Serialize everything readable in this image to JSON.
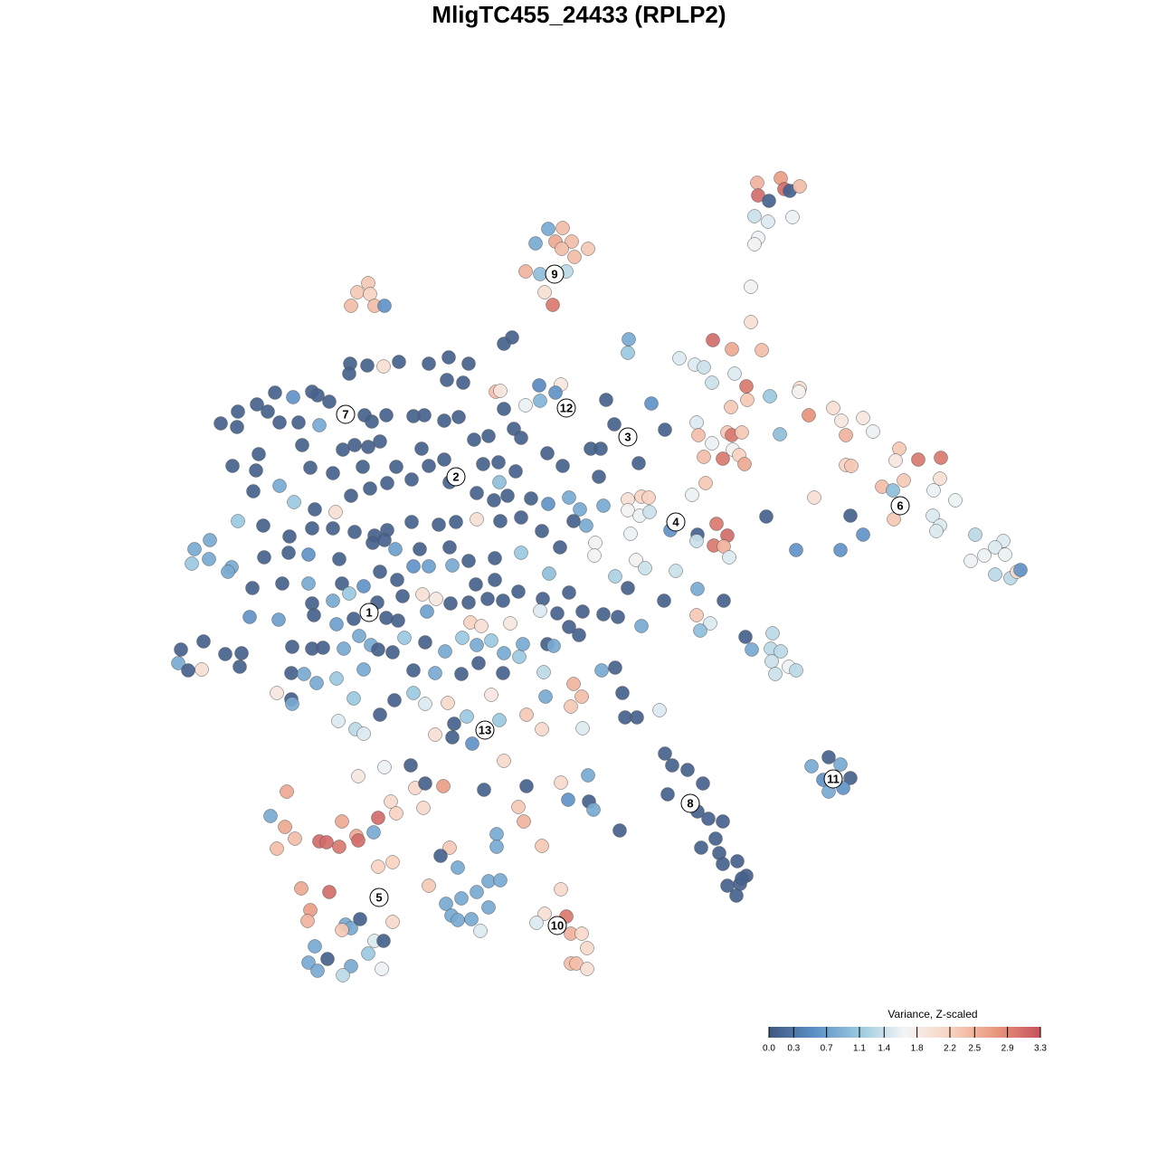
{
  "chart_data": {
    "type": "scatter",
    "title": "MligTC455_24433 (RPLP2)",
    "xlim": [
      0,
      1280
    ],
    "ylim": [
      1280,
      0
    ],
    "colors": [
      "#40587f",
      "#5b8fc6",
      "#9ac9df",
      "#f4f5f6",
      "#f8d3c1",
      "#e9997f",
      "#c6525c"
    ],
    "colorbar": {
      "title": "Variance, Z-scaled",
      "lim": [
        0,
        3.3
      ],
      "ticks": [
        {
          "value": 0,
          "label": "0.0"
        },
        0.3,
        0.7,
        1.1,
        1.4,
        1.8,
        2.2,
        2.5,
        2.9,
        3.3
      ]
    },
    "clusters": {
      "labels": [
        "1",
        "2",
        "3",
        "4",
        "5",
        "6",
        "7",
        "8",
        "9",
        "10",
        "11",
        "12",
        "13"
      ],
      "x": [
        408,
        504,
        694,
        747,
        419,
        995,
        382,
        763,
        613,
        616,
        921,
        626,
        536
      ],
      "y": [
        677,
        527,
        483,
        577,
        992,
        559,
        458,
        888,
        303,
        1023,
        861,
        451,
        807
      ]
    },
    "x": [
      837,
      863,
      867,
      838,
      873,
      884,
      850,
      834,
      849,
      876,
      838,
      834,
      830,
      830,
      606,
      622,
      592,
      614,
      632,
      621,
      650,
      635,
      581,
      597,
      626,
      602,
      611,
      407,
      395,
      409,
      388,
      414,
      425,
      566,
      557,
      387,
      406,
      424,
      441,
      474,
      496,
      518,
      386,
      512,
      494,
      548,
      553,
      596,
      620,
      614,
      597,
      581,
      670,
      720,
      284,
      304,
      324,
      345,
      351,
      364,
      296,
      263,
      244,
      262,
      309,
      330,
      353,
      403,
      411,
      427,
      457,
      469,
      491,
      507,
      557,
      568,
      576,
      524,
      540,
      420,
      407,
      379,
      392,
      334,
      286,
      257,
      283,
      343,
      368,
      401,
      438,
      466,
      474,
      491,
      534,
      551,
      570,
      605,
      622,
      653,
      664,
      706,
      662,
      679,
      735,
      552,
      561,
      546,
      587,
      606,
      629,
      641,
      667,
      280,
      309,
      325,
      348,
      388,
      409,
      428,
      455,
      497,
      527,
      371,
      263,
      291,
      320,
      345,
      368,
      392,
      414,
      428,
      455,
      485,
      504,
      527,
      553,
      576,
      599,
      634,
      648,
      215,
      232,
      212,
      231,
      256,
      292,
      319,
      341,
      375,
      412,
      425,
      437,
      464,
      497,
      518,
      547,
      576,
      619,
      658,
      657,
      703,
      252,
      279,
      312,
      341,
      378,
      402,
      420,
      439,
      457,
      474,
      500,
      526,
      547,
      573,
      607,
      629,
      680,
      713,
      747,
      694,
      734,
      771,
      800,
      345,
      368,
      386,
      417,
      445,
      467,
      482,
      498,
      518,
      539,
      556,
      600,
      597,
      616,
      644,
      667,
      683,
      276,
      308,
      347,
      372,
      391,
      427,
      440,
      472,
      520,
      532,
      564,
      629,
      640,
      709,
      770,
      785,
      774,
      200,
      225,
      197,
      208,
      223,
      249,
      267,
      265,
      323,
      345,
      357,
      380,
      397,
      410,
      418,
      434,
      447,
      470,
      492,
      511,
      527,
      543,
      557,
      574,
      578,
      605,
      612,
      824,
      854,
      831,
      852,
      863,
      853,
      872,
      880,
      857,
      322,
      336,
      350,
      372,
      402,
      457,
      481,
      510,
      529,
      556,
      601,
      665,
      680,
      306,
      322,
      323,
      391,
      436,
      457,
      470,
      495,
      543,
      603,
      634,
      643,
      688,
      374,
      393,
      402,
      420,
      481,
      502,
      516,
      552,
      582,
      599,
      631,
      644,
      691,
      704,
      729,
      500,
      522,
      695,
      694,
      751,
      768,
      778,
      788,
      809,
      842,
      787,
      812,
      825,
      851,
      884,
      883,
      826,
      770,
      808,
      772,
      787,
      804,
      809,
      820,
      810,
      817,
      778,
      799,
      823,
      780,
      765,
      862,
      894,
      921,
      930,
      954,
      935,
      965,
      994,
      1015,
      1040,
      990,
      935,
      941,
      1039,
      975,
      999,
      987,
      1032,
      900,
      1056,
      1031,
      1039,
      1035,
      988,
      940,
      954,
      929,
      880,
      847,
      1078,
      1109,
      1100,
      1088,
      1111,
      1073,
      1100,
      1117,
      1124,
      1128,
      694,
      709,
      717,
      694,
      707,
      718,
      697,
      741,
      771,
      770,
      792,
      804,
      789,
      800,
      806,
      916,
      897,
      929,
      910,
      940,
      916,
      932,
      735,
      743,
      760,
      777,
      738,
      771,
      783,
      799,
      775,
      791,
      795,
      799,
      815,
      825,
      818,
      804,
      820,
      814,
      685,
      454,
      425,
      396,
      459,
      470,
      490,
      535,
      557,
      582,
      620,
      650,
      628,
      651,
      656,
      573,
      579,
      599,
      549,
      549,
      497,
      487,
      506,
      474,
      540,
      553,
      527,
      510,
      493,
      540,
      499,
      506,
      521,
      531,
      432,
      438,
      468,
      413,
      418,
      620,
      602,
      626,
      593,
      631,
      643,
      649,
      631,
      637,
      649,
      317,
      299,
      315,
      326,
      306,
      353,
      361,
      375,
      378,
      394,
      396,
      418,
      434,
      333,
      364,
      343,
      340,
      382,
      388,
      398,
      434,
      378,
      414,
      424,
      407,
      348,
      341,
      362,
      351,
      388,
      379,
      422
    ],
    "y": [
      202,
      197,
      209,
      216,
      211,
      206,
      222,
      239,
      245,
      240,
      263,
      270,
      317,
      356,
      253,
      252,
      269,
      267,
      267,
      275,
      275,
      284,
      300,
      303,
      300,
      323,
      337,
      313,
      323,
      325,
      338,
      338,
      338,
      373,
      380,
      402,
      404,
      405,
      400,
      402,
      395,
      402,
      413,
      423,
      420,
      433,
      432,
      426,
      425,
      434,
      443,
      448,
      442,
      446,
      447,
      434,
      439,
      433,
      437,
      444,
      455,
      455,
      468,
      472,
      467,
      467,
      470,
      459,
      466,
      459,
      460,
      459,
      465,
      461,
      452,
      474,
      484,
      486,
      482,
      488,
      494,
      497,
      492,
      492,
      502,
      515,
      520,
      517,
      523,
      516,
      516,
      496,
      515,
      508,
      513,
      511,
      521,
      501,
      515,
      496,
      496,
      512,
      527,
      469,
      475,
      533,
      548,
      553,
      551,
      557,
      550,
      563,
      559,
      543,
      537,
      555,
      563,
      548,
      540,
      534,
      530,
      533,
      545,
      566,
      576,
      581,
      593,
      584,
      584,
      588,
      592,
      586,
      577,
      580,
      577,
      574,
      576,
      572,
      587,
      576,
      581,
      607,
      597,
      623,
      618,
      627,
      616,
      611,
      613,
      618,
      600,
      597,
      607,
      607,
      605,
      620,
      617,
      611,
      605,
      600,
      614,
      619,
      632,
      650,
      645,
      645,
      645,
      648,
      632,
      641,
      626,
      626,
      625,
      646,
      641,
      654,
      634,
      655,
      637,
      628,
      631,
      650,
      664,
      651,
      664,
      667,
      664,
      656,
      666,
      659,
      657,
      662,
      667,
      666,
      662,
      664,
      662,
      675,
      678,
      676,
      679,
      682,
      682,
      685,
      680,
      690,
      684,
      683,
      686,
      676,
      688,
      692,
      689,
      693,
      702,
      692,
      680,
      689,
      697,
      718,
      709,
      733,
      741,
      740,
      723,
      722,
      737,
      715,
      717,
      716,
      717,
      703,
      713,
      718,
      721,
      705,
      710,
      720,
      705,
      713,
      708,
      722,
      726,
      712,
      712,
      714,
      704,
      700,
      718,
      717,
      720,
      731,
      737,
      741,
      745,
      744,
      745,
      755,
      750,
      740,
      741,
      744,
      745,
      733,
      744,
      743,
      741,
      738,
      766,
      773,
      778,
      772,
      774,
      766,
      778,
      777,
      768,
      770,
      756,
      770,
      766,
      797,
      806,
      811,
      790,
      812,
      800,
      792,
      796,
      790,
      806,
      781,
      805,
      793,
      793,
      785,
      815,
      822,
      375,
      390,
      396,
      403,
      406,
      376,
      386,
      387,
      423,
      413,
      427,
      438,
      429,
      433,
      442,
      467,
      450,
      481,
      490,
      478,
      481,
      478,
      497,
      503,
      505,
      507,
      513,
      534,
      547,
      480,
      459,
      451,
      465,
      462,
      481,
      477,
      496,
      508,
      506,
      509,
      514,
      515,
      529,
      538,
      531,
      542,
      542,
      550,
      553,
      570,
      581,
      587,
      574,
      570,
      591,
      608,
      608,
      571,
      591,
      598,
      605,
      614,
      613,
      620,
      635,
      639,
      632,
      630,
      552,
      549,
      550,
      564,
      570,
      566,
      590,
      586,
      591,
      598,
      579,
      592,
      603,
      604,
      616,
      837,
      847,
      845,
      862,
      860,
      875,
      871,
      833,
      846,
      851,
      866,
      878,
      897,
      905,
      908,
      937,
      927,
      943,
      955,
      952,
      968,
      977,
      979,
      971,
      990,
      918,
      846,
      848,
      858,
      871,
      866,
      869,
      873,
      841,
      869,
      865,
      857,
      884,
      886,
      895,
      892,
      908,
      935,
      922,
      936,
      937,
      946,
      959,
      979,
      974,
      973,
      986,
      993,
      999,
      1003,
      1012,
      1017,
      1016,
      1029,
      886,
      899,
      893,
      920,
      904,
      983,
      1010,
      1013,
      1020,
      1032,
      1032,
      1048,
      1065,
      1065,
      1071,
      875,
      902,
      914,
      927,
      938,
      930,
      931,
      936,
      908,
      924,
      929,
      958,
      953,
      982,
      986,
      1006,
      1018,
      1022,
      1026,
      1016,
      1019,
      1028,
      1040,
      1040,
      1054,
      1046,
      1064,
      1060,
      1073,
      1068,
      1078,
      1071
    ],
    "values": [
      2.5,
      2.7,
      3.1,
      3.1,
      0.1,
      2.4,
      0.1,
      1.4,
      1.5,
      1.6,
      1.6,
      1.7,
      1.7,
      2.0,
      0.8,
      2.4,
      0.8,
      2.6,
      2.4,
      2.4,
      2.3,
      2.4,
      2.5,
      1.0,
      1.3,
      2.0,
      3.0,
      2.3,
      2.3,
      2.2,
      2.4,
      2.4,
      0.6,
      0.1,
      0.1,
      0.1,
      0.1,
      2.0,
      0.1,
      0.1,
      0.1,
      0.1,
      0.1,
      0.1,
      0.1,
      2.4,
      1.9,
      0.5,
      1.9,
      0.6,
      0.9,
      1.6,
      0.1,
      0.6,
      0.1,
      0.1,
      0.6,
      0.1,
      0.1,
      0.1,
      0.1,
      0.1,
      0.1,
      0.1,
      0.1,
      0.1,
      0.8,
      0.1,
      0.1,
      0.1,
      0.1,
      0.1,
      0.1,
      0.1,
      0.1,
      0.1,
      0.1,
      0.1,
      0.1,
      0.1,
      0.1,
      0.1,
      0.1,
      0.1,
      0.1,
      0.1,
      0.1,
      0.1,
      0.1,
      0.1,
      0.1,
      0.1,
      0.1,
      0.1,
      0.1,
      0.1,
      0.1,
      0.1,
      0.1,
      0.1,
      0.1,
      0.1,
      0.1,
      0.1,
      0.1,
      1.0,
      0.1,
      0.1,
      0.1,
      0.6,
      0.8,
      0.8,
      0.8,
      0.1,
      0.8,
      1.1,
      0.1,
      0.1,
      0.1,
      0.1,
      0.1,
      0.1,
      0.1,
      2.0,
      1.1,
      0.1,
      0.1,
      0.1,
      0.1,
      0.1,
      0.1,
      0.1,
      0.1,
      0.1,
      0.1,
      2.0,
      0.1,
      0.1,
      0.1,
      0.1,
      0.8,
      0.8,
      0.8,
      1.1,
      0.8,
      0.8,
      0.1,
      0.1,
      0.6,
      0.1,
      0.1,
      0.1,
      0.7,
      0.1,
      0.1,
      0.1,
      0.1,
      1.1,
      0.1,
      1.7,
      1.7,
      1.7,
      0.8,
      0.1,
      0.1,
      0.8,
      0.1,
      0.6,
      0.1,
      0.1,
      0.6,
      0.7,
      0.8,
      0.1,
      0.1,
      0.1,
      1.0,
      0.1,
      1.2,
      1.4,
      1.4,
      0.1,
      0.1,
      0.8,
      0.1,
      0.1,
      0.8,
      1.1,
      0.1,
      0.1,
      2.0,
      1.9,
      0.1,
      0.1,
      0.1,
      0.1,
      0.1,
      1.5,
      0.1,
      0.1,
      0.1,
      0.1,
      0.6,
      0.7,
      0.1,
      0.7,
      0.1,
      0.1,
      0.1,
      0.7,
      2.2,
      2.0,
      1.9,
      0.1,
      0.1,
      0.8,
      2.3,
      1.5,
      1.0,
      0.1,
      0.1,
      0.8,
      0.1,
      2.0,
      0.1,
      0.1,
      0.1,
      0.1,
      0.1,
      0.1,
      0.8,
      0.8,
      0.8,
      0.1,
      0.1,
      1.1,
      0.1,
      0.8,
      1.1,
      0.8,
      1.1,
      0.8,
      1.1,
      0.8,
      0.1,
      0.8,
      0.1,
      1.3,
      0.8,
      1.3,
      1.3,
      1.4,
      1.6,
      1.3,
      1.4,
      0.1,
      0.8,
      0.8,
      1.1,
      0.8,
      0.1,
      0.8,
      0.1,
      0.1,
      0.1,
      1.3,
      0.8,
      0.1,
      1.9,
      0.1,
      0.8,
      1.1,
      0.1,
      1.1,
      1.5,
      2.1,
      1.9,
      0.8,
      2.5,
      2.4,
      0.1,
      1.5,
      1.3,
      1.5,
      0.1,
      2.0,
      0.1,
      1.1,
      1.1,
      2.3,
      2.1,
      2.3,
      1.5,
      0.1,
      0.1,
      1.5,
      0.1,
      0.6,
      0.8,
      1.1,
      1.5,
      1.5,
      1.4,
      3.1,
      2.6,
      2.4,
      1.4,
      1.5,
      3.0,
      1.1,
      2.0,
      1.7,
      2.3,
      1.5,
      2.3,
      2.4,
      1.6,
      2.3,
      3.0,
      2.3,
      1.7,
      2.2,
      2.4,
      3.0,
      2.6,
      2.3,
      1.6,
      1.0,
      2.8,
      2.0,
      1.9,
      1.9,
      2.5,
      1.6,
      2.3,
      3.0,
      3.0,
      1.9,
      2.2,
      2.3,
      2.0,
      2.4,
      2.3,
      1.0,
      1.6,
      2.0,
      1.6,
      1.5,
      1.5,
      1.5,
      2.3,
      0.1,
      0.6,
      0.6,
      0.6,
      0.1,
      1.3,
      1.5,
      1.5,
      1.6,
      1.6,
      1.6,
      1.3,
      1.3,
      2.1,
      0.6,
      2.0,
      2.2,
      2.2,
      1.7,
      1.6,
      1.4,
      1.6,
      0.6,
      0.1,
      1.4,
      3.0,
      3.1,
      3.0,
      2.5,
      1.5,
      0.1,
      0.8,
      0.8,
      0.6,
      0.1,
      0.8,
      0.6,
      0.1,
      0.1,
      0.1,
      0.1,
      0.1,
      0.1,
      0.1,
      0.1,
      0.1,
      0.1,
      0.1,
      0.1,
      0.1,
      0.1,
      0.1,
      0.1,
      0.1,
      0.1,
      0.1,
      0.1,
      1.6,
      1.9,
      2.1,
      0.1,
      2.7,
      0.1,
      2.1,
      0.1,
      2.1,
      0.8,
      0.6,
      0.1,
      0.8,
      2.3,
      2.5,
      2.3,
      0.8,
      0.8,
      2.3,
      0.1,
      0.8,
      2.3,
      0.8,
      0.8,
      0.8,
      0.8,
      0.8,
      0.8,
      0.8,
      0.8,
      0.8,
      1.5,
      2.1,
      2.2,
      2.1,
      0.8,
      3.1,
      2.1,
      2.0,
      3.0,
      1.5,
      2.5,
      2.1,
      2.1,
      2.4,
      2.4,
      2.0,
      2.6,
      0.8,
      2.6,
      2.4,
      2.4,
      3.1,
      3.1,
      3.0,
      2.6,
      2.6,
      3.1,
      2.2,
      2.2,
      2.6,
      3.1,
      2.7,
      2.5,
      0.8,
      0.8,
      0.1,
      2.1,
      2.3,
      1.5,
      0.1,
      1.1,
      0.8,
      0.8,
      0.1,
      0.8,
      0.8,
      1.3,
      1.6
    ]
  }
}
